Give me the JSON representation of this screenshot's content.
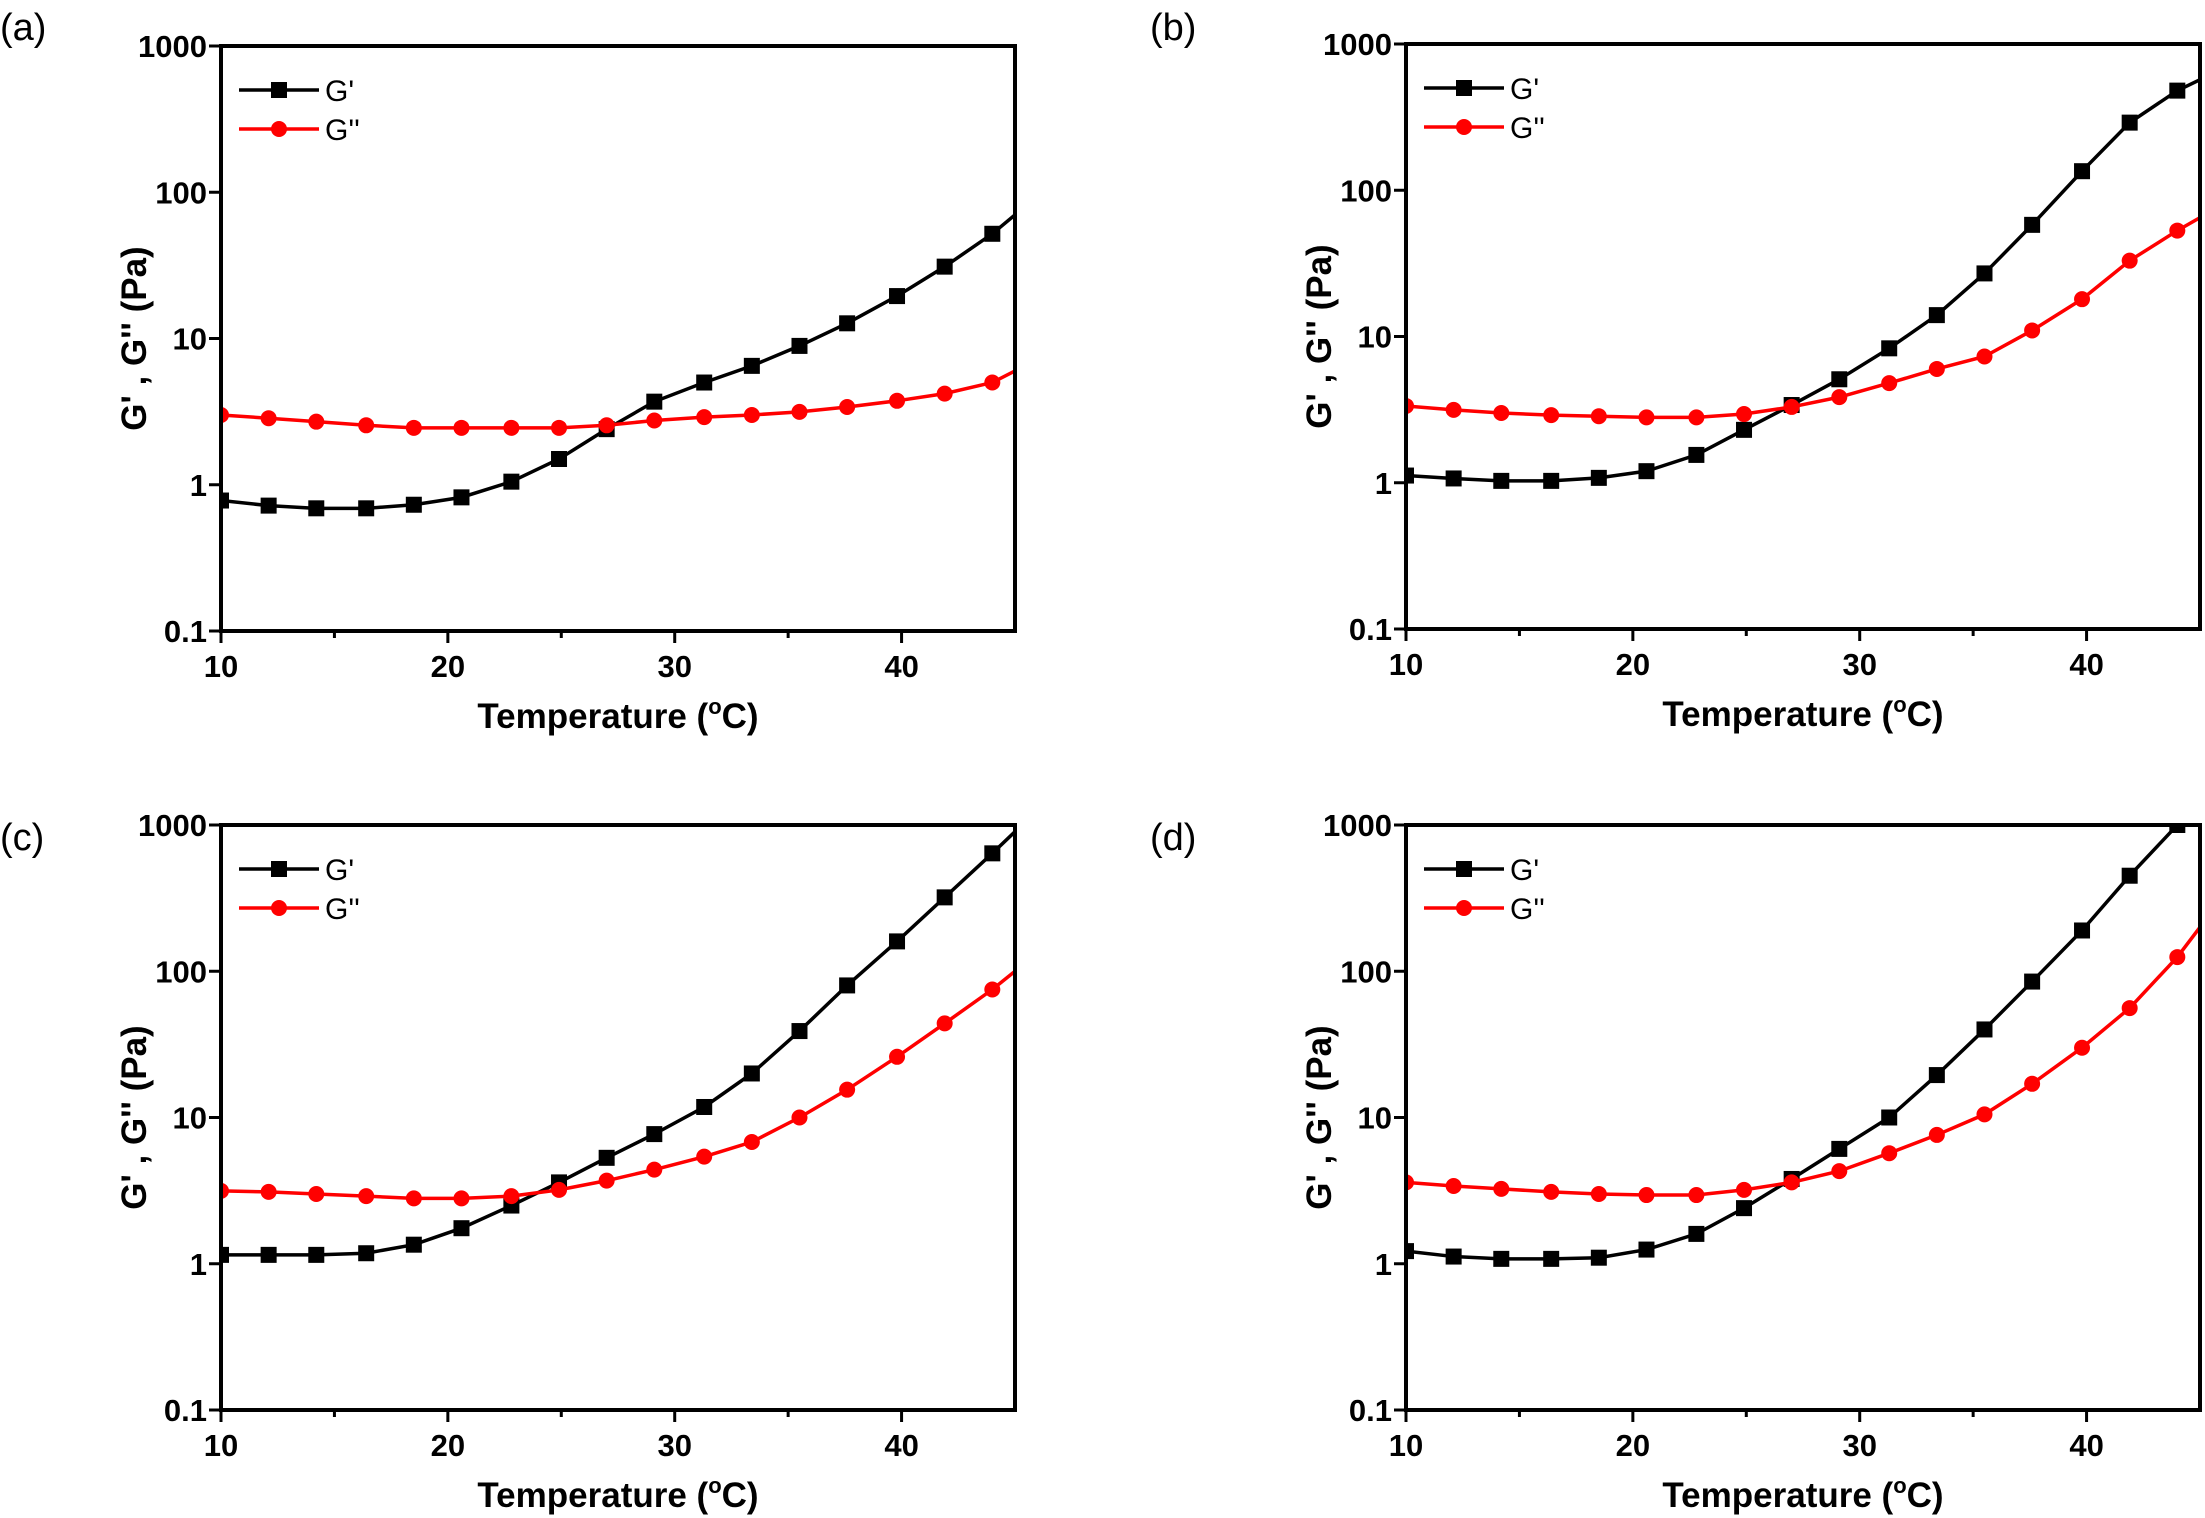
{
  "colors": {
    "g_prime": "#000000",
    "g_double_prime": "#ff0000"
  },
  "chart_data": [
    {
      "type": "line",
      "panel_label": "(a)",
      "xlabel": "Temperature (",
      "xlabel_sup": "o",
      "xlabel_end": "C)",
      "ylabel": "G' , G'' (Pa)",
      "yscale": "log",
      "xlim": [
        10,
        45
      ],
      "ylim": [
        0.1,
        1000
      ],
      "xticks": [
        "10",
        "20",
        "30",
        "40"
      ],
      "yticks": [
        "0.1",
        "1",
        "10",
        "100",
        "1000"
      ],
      "legend": "top-left",
      "x": [
        10,
        12.1,
        14.2,
        16.4,
        18.5,
        20.6,
        22.8,
        24.9,
        27,
        29.1,
        31.3,
        33.4,
        35.5,
        37.6,
        39.8,
        41.9,
        44,
        45
      ],
      "series": [
        {
          "name": "G'",
          "marker": "square",
          "values": [
            0.78,
            0.72,
            0.69,
            0.69,
            0.73,
            0.82,
            1.05,
            1.5,
            2.4,
            3.7,
            5.0,
            6.5,
            8.9,
            12.7,
            19.5,
            31,
            52,
            70
          ]
        },
        {
          "name": "G''",
          "marker": "circle",
          "values": [
            3.0,
            2.85,
            2.7,
            2.55,
            2.45,
            2.45,
            2.45,
            2.45,
            2.55,
            2.75,
            2.9,
            3.0,
            3.15,
            3.4,
            3.75,
            4.2,
            5.0,
            6.0
          ]
        }
      ]
    },
    {
      "type": "line",
      "panel_label": "(b)",
      "xlabel": "Temperature (",
      "xlabel_sup": "o",
      "xlabel_end": "C)",
      "ylabel": "G' , G'' (Pa)",
      "yscale": "log",
      "xlim": [
        10,
        45
      ],
      "ylim": [
        0.1,
        1000
      ],
      "xticks": [
        "10",
        "20",
        "30",
        "40"
      ],
      "yticks": [
        "0.1",
        "1",
        "10",
        "100",
        "1000"
      ],
      "legend": "top-left",
      "x": [
        10,
        12.1,
        14.2,
        16.4,
        18.5,
        20.6,
        22.8,
        24.9,
        27,
        29.1,
        31.3,
        33.4,
        35.5,
        37.6,
        39.8,
        41.9,
        44,
        45
      ],
      "series": [
        {
          "name": "G'",
          "marker": "square",
          "values": [
            1.12,
            1.07,
            1.03,
            1.03,
            1.08,
            1.2,
            1.55,
            2.3,
            3.4,
            5.1,
            8.3,
            14,
            27,
            58,
            135,
            290,
            480,
            570
          ]
        },
        {
          "name": "G''",
          "marker": "circle",
          "values": [
            3.35,
            3.15,
            3.0,
            2.9,
            2.85,
            2.8,
            2.8,
            2.95,
            3.3,
            3.85,
            4.8,
            6.0,
            7.3,
            11,
            18,
            33,
            53,
            65
          ]
        }
      ]
    },
    {
      "type": "line",
      "panel_label": "(c)",
      "xlabel": "Temperature (",
      "xlabel_sup": "o",
      "xlabel_end": "C)",
      "ylabel": "G' , G'' (Pa)",
      "yscale": "log",
      "xlim": [
        10,
        45
      ],
      "ylim": [
        0.1,
        1000
      ],
      "xticks": [
        "10",
        "20",
        "30",
        "40"
      ],
      "yticks": [
        "0.1",
        "1",
        "10",
        "100",
        "1000"
      ],
      "legend": "top-left",
      "x": [
        10,
        12.1,
        14.2,
        16.4,
        18.5,
        20.6,
        22.8,
        24.9,
        27,
        29.1,
        31.3,
        33.4,
        35.5,
        37.6,
        39.8,
        41.9,
        44,
        45
      ],
      "series": [
        {
          "name": "G'",
          "marker": "square",
          "values": [
            1.15,
            1.15,
            1.15,
            1.18,
            1.35,
            1.75,
            2.5,
            3.6,
            5.3,
            7.7,
            11.8,
            20,
            39,
            80,
            160,
            320,
            640,
            900
          ]
        },
        {
          "name": "G''",
          "marker": "circle",
          "values": [
            3.15,
            3.1,
            3.0,
            2.9,
            2.8,
            2.8,
            2.9,
            3.2,
            3.7,
            4.4,
            5.4,
            6.8,
            10,
            15.5,
            26,
            44,
            75,
            100
          ]
        }
      ]
    },
    {
      "type": "line",
      "panel_label": "(d)",
      "xlabel": "Temperature (",
      "xlabel_sup": "o",
      "xlabel_end": "C)",
      "ylabel": "G' , G'' (Pa)",
      "yscale": "log",
      "xlim": [
        10,
        45
      ],
      "ylim": [
        0.1,
        1000
      ],
      "xticks": [
        "10",
        "20",
        "30",
        "40"
      ],
      "yticks": [
        "0.1",
        "1",
        "10",
        "100",
        "1000"
      ],
      "legend": "top-left",
      "x": [
        10,
        12.1,
        14.2,
        16.4,
        18.5,
        20.6,
        22.8,
        24.9,
        27,
        29.1,
        31.3,
        33.4,
        35.5,
        37.6,
        39.8,
        41.9,
        44,
        45
      ],
      "series": [
        {
          "name": "G'",
          "marker": "square",
          "values": [
            1.22,
            1.12,
            1.08,
            1.08,
            1.1,
            1.25,
            1.6,
            2.4,
            3.8,
            6.1,
            10,
            19.5,
            40,
            85,
            190,
            450,
            1000,
            1000
          ]
        },
        {
          "name": "G''",
          "marker": "circle",
          "values": [
            3.6,
            3.4,
            3.25,
            3.1,
            3.0,
            2.95,
            2.95,
            3.2,
            3.6,
            4.3,
            5.7,
            7.6,
            10.5,
            17,
            30,
            56,
            125,
            200
          ]
        }
      ]
    }
  ]
}
